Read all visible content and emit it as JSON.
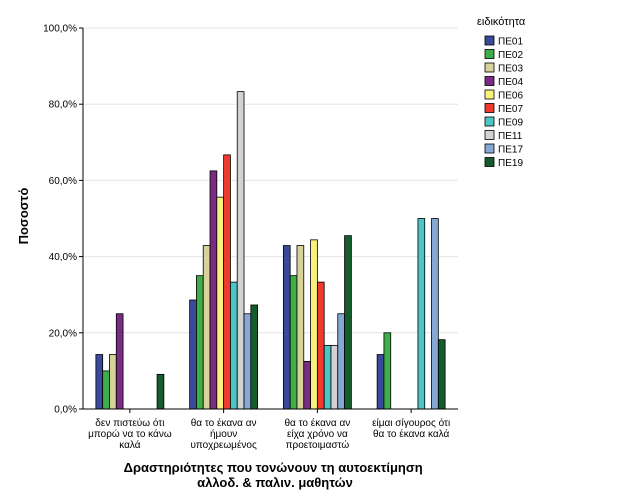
{
  "chart_data": {
    "type": "bar",
    "ylabel": "Ποσοστό",
    "xlabel_lines": [
      "Δραστηριότητες που τονώνουν τη αυτοεκτίμηση",
      "αλλοδ. & παλιν. μαθητών"
    ],
    "ylim": [
      0,
      100
    ],
    "yticks": [
      "0,0%",
      "20,0%",
      "40,0%",
      "60,0%",
      "80,0%",
      "100,0%"
    ],
    "categories": [
      [
        "δεν πιστεύω ότι",
        "μπορώ να το κάνω",
        "καλά"
      ],
      [
        "θα το έκανα αν",
        "ήμουν",
        "υποχρεωμένος"
      ],
      [
        "θα το έκανα αν",
        "είχα χρόνο να",
        "προετοιμαστώ"
      ],
      [
        "είμαι σίγουρος ότι",
        "θα το έκανα καλά"
      ]
    ],
    "legend_title": "ειδικότητα",
    "legend_position": "right",
    "series": [
      {
        "name": "ΠΕ01",
        "color": "#3a4a9a",
        "values": [
          14.3,
          28.6,
          42.9,
          14.3
        ]
      },
      {
        "name": "ΠΕ02",
        "color": "#3fae49",
        "values": [
          10.0,
          35.0,
          35.0,
          20.0
        ]
      },
      {
        "name": "ΠΕ03",
        "color": "#d6d29a",
        "values": [
          14.3,
          42.9,
          42.9,
          0
        ]
      },
      {
        "name": "ΠΕ04",
        "color": "#7a2c82",
        "values": [
          25.0,
          62.5,
          12.5,
          0
        ]
      },
      {
        "name": "ΠΕ06",
        "color": "#f8f27a",
        "values": [
          0,
          55.6,
          44.4,
          0
        ]
      },
      {
        "name": "ΠΕ07",
        "color": "#f03a2e",
        "values": [
          0,
          66.7,
          33.3,
          0
        ]
      },
      {
        "name": "ΠΕ09",
        "color": "#4fc4c4",
        "values": [
          0,
          33.3,
          16.7,
          50.0
        ]
      },
      {
        "name": "ΠΕ11",
        "color": "#d2d2d2",
        "values": [
          0,
          83.3,
          16.7,
          0
        ]
      },
      {
        "name": "ΠΕ17",
        "color": "#86a8d4",
        "values": [
          0,
          25.0,
          25.0,
          50.0
        ]
      },
      {
        "name": "ΠΕ19",
        "color": "#145c2c",
        "values": [
          9.1,
          27.3,
          45.5,
          18.2
        ]
      }
    ]
  }
}
